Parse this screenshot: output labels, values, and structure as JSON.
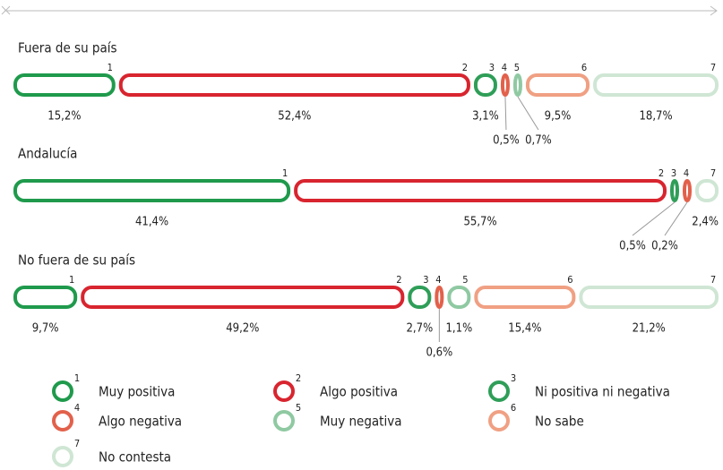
{
  "chart_data": {
    "type": "bar",
    "orientation": "horizontal",
    "stacked": true,
    "categories": [
      "Fuera de su país",
      "Andalucía",
      "No fuera de su país"
    ],
    "series": [
      {
        "name": "Muy positiva",
        "number": "1",
        "color": "#1f9a4c",
        "values": [
          15.2,
          41.4,
          9.7
        ],
        "value_labels": [
          "15,2%",
          "41,4%",
          "9,7%"
        ]
      },
      {
        "name": "Algo positiva",
        "number": "2",
        "color": "#d8252f",
        "values": [
          52.4,
          55.7,
          49.2
        ],
        "value_labels": [
          "52,4%",
          "55,7%",
          "49,2%"
        ]
      },
      {
        "name": "Ni positiva ni negativa",
        "number": "3",
        "color": "#2f9e58",
        "values": [
          3.1,
          0.5,
          2.7
        ],
        "value_labels": [
          "3,1%",
          "0,5%",
          "2,7%"
        ]
      },
      {
        "name": "Algo negativa",
        "number": "4",
        "color": "#e2614b",
        "values": [
          0.5,
          0.2,
          0.6
        ],
        "value_labels": [
          "0,5%",
          "0,2%",
          "0,6%"
        ]
      },
      {
        "name": "Muy negativa",
        "number": "5",
        "color": "#8fc9a2",
        "values": [
          0.7,
          null,
          1.1
        ],
        "value_labels": [
          "0,7%",
          null,
          "1,1%"
        ]
      },
      {
        "name": "No sabe",
        "number": "6",
        "color": "#f0a083",
        "values": [
          9.5,
          null,
          15.4
        ],
        "value_labels": [
          "9,5%",
          null,
          "15,4%"
        ]
      },
      {
        "name": "No contesta",
        "number": "7",
        "color": "#cfe6d4",
        "values": [
          18.7,
          2.4,
          21.2
        ],
        "value_labels": [
          "18,7%",
          "2,4%",
          "21,2%"
        ]
      }
    ]
  }
}
